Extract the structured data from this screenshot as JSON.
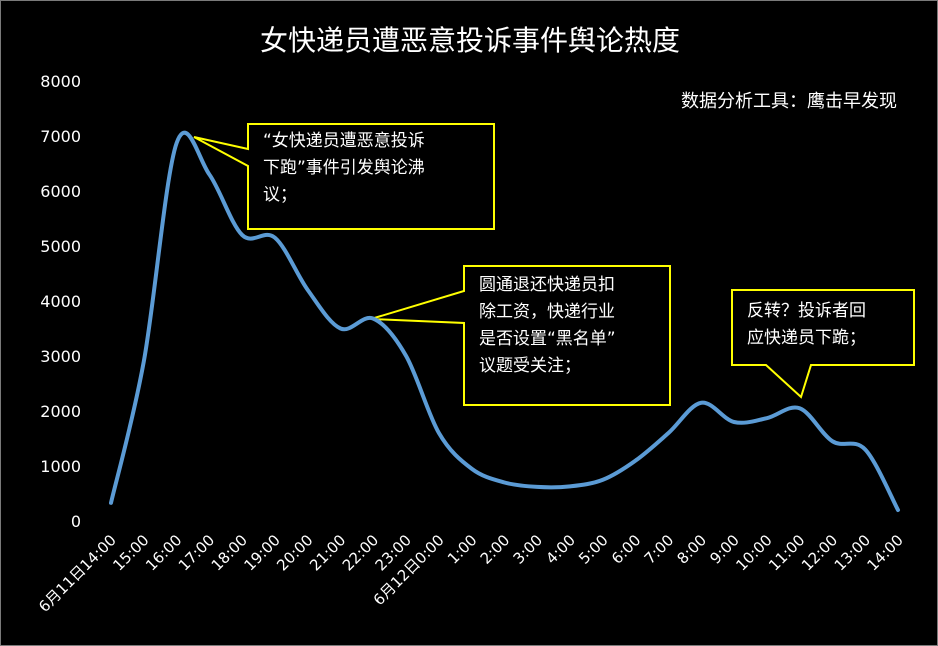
{
  "chart_data": {
    "type": "line",
    "title": "女快递员遭恶意投诉事件舆论热度",
    "source_note": "数据分析工具：鹰击早发现",
    "xlabel": "",
    "ylabel": "",
    "ylim": [
      0,
      8000
    ],
    "yticks": [
      0,
      1000,
      2000,
      3000,
      4000,
      5000,
      6000,
      7000,
      8000
    ],
    "grid": false,
    "categories": [
      "6月11日14:00",
      "15:00",
      "16:00",
      "17:00",
      "18:00",
      "19:00",
      "20:00",
      "21:00",
      "22:00",
      "23:00",
      "6月12日0:00",
      "1:00",
      "2:00",
      "3:00",
      "4:00",
      "5:00",
      "6:00",
      "7:00",
      "8:00",
      "9:00",
      "10:00",
      "11:00",
      "12:00",
      "13:00",
      "14:00"
    ],
    "series": [
      {
        "name": "舆论热度",
        "color": "#5b9bd5",
        "values": [
          330,
          2900,
          6870,
          6300,
          5200,
          5150,
          4200,
          3500,
          3680,
          3000,
          1600,
          950,
          700,
          620,
          630,
          750,
          1100,
          1600,
          2150,
          1800,
          1870,
          2050,
          1450,
          1300,
          200
        ]
      }
    ],
    "annotations": [
      {
        "text": "“女快递员遭恶意投诉下跑”事件引发舆论沸议；",
        "lines": [
          "“女快递员遭恶意投诉",
          "下跑”事件引发舆论沸",
          "议；"
        ],
        "point_index": 2
      },
      {
        "text": "圆通退还快递员扣除工资，快递行业是否设置“黑名单”议题受关注；",
        "lines": [
          "圆通退还快递员扣",
          "除工资，快递行业",
          "是否设置“黑名单”",
          "议题受关注；"
        ],
        "point_index": 8
      },
      {
        "text": "反转？投诉者回应快递员下跪；",
        "lines": [
          "反转？投诉者回",
          "应快递员下跪；"
        ],
        "point_index": 21
      }
    ]
  }
}
